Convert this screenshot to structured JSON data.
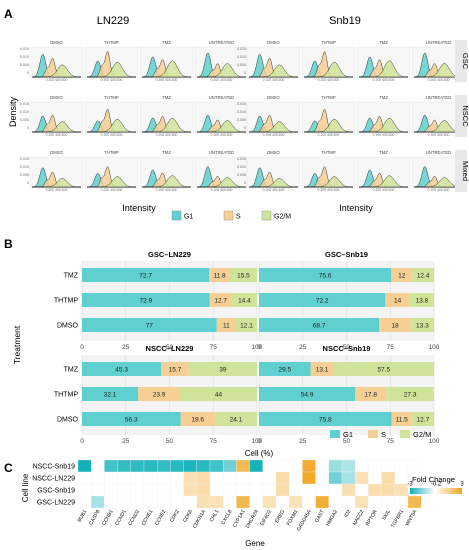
{
  "colors": {
    "g1": "#5fcfcf",
    "s": "#f6cf94",
    "g2m": "#cfe39a",
    "grid": "#e4e4e4",
    "hmHigh": "#f2a51e",
    "hmLow": "#11b1ba",
    "hmPaleHigh": "#fbe2b3",
    "hmPaleLow": "#bfeaec"
  },
  "panelA": {
    "letter": "A",
    "groups": [
      "LN229",
      "Snb19"
    ],
    "conditions": [
      "DMSO",
      "THTMP",
      "TMZ",
      "UNTREATED"
    ],
    "rows": [
      "GSC",
      "NSCC",
      "Mixed"
    ],
    "ylabel": "Density",
    "xlabel": "Intensity",
    "yticks_LN229": [
      "0.015",
      "0.010",
      "0.005",
      "0"
    ],
    "yticks_Snb19": [
      "0.015",
      "0.010",
      "0.005",
      "0"
    ],
    "legend": [
      "G1",
      "S",
      "G2/M"
    ]
  },
  "chart_data": [
    {
      "type": "bar",
      "title": "GSC–LN229",
      "stacked": true,
      "orientation": "horizontal",
      "categories": [
        "TMZ",
        "THTMP",
        "DMSO"
      ],
      "series": [
        {
          "name": "G1",
          "values": [
            72.7,
            72.9,
            77
          ]
        },
        {
          "name": "S",
          "values": [
            11.8,
            12.7,
            11
          ]
        },
        {
          "name": "G2/M",
          "values": [
            15.5,
            14.4,
            12.1
          ]
        }
      ],
      "xlim": [
        0,
        100
      ],
      "xticks": [
        0,
        25,
        50,
        75,
        100
      ],
      "xlabel": "Cell (%)",
      "ylabel": "Treatment"
    },
    {
      "type": "bar",
      "title": "GSC–Snb19",
      "stacked": true,
      "orientation": "horizontal",
      "categories": [
        "TMZ",
        "THTMP",
        "DMSO"
      ],
      "series": [
        {
          "name": "G1",
          "values": [
            75.6,
            72.2,
            68.7
          ]
        },
        {
          "name": "S",
          "values": [
            12,
            14,
            18
          ]
        },
        {
          "name": "G2/M",
          "values": [
            12.4,
            13.8,
            13.3
          ]
        }
      ],
      "xlim": [
        0,
        100
      ],
      "xticks": [
        0,
        25,
        50,
        75,
        100
      ],
      "xlabel": "Cell (%)"
    },
    {
      "type": "bar",
      "title": "NSCC–LN229",
      "stacked": true,
      "orientation": "horizontal",
      "categories": [
        "TMZ",
        "THTMP",
        "DMSO"
      ],
      "series": [
        {
          "name": "G1",
          "values": [
            45.3,
            32.1,
            56.3
          ]
        },
        {
          "name": "S",
          "values": [
            15.7,
            23.9,
            19.6
          ]
        },
        {
          "name": "G2/M",
          "values": [
            39,
            44,
            24.1
          ]
        }
      ],
      "xlim": [
        0,
        100
      ],
      "xticks": [
        0,
        25,
        50,
        75,
        100
      ],
      "xlabel": "Cell (%)"
    },
    {
      "type": "bar",
      "title": "NSCC–Snb19",
      "stacked": true,
      "orientation": "horizontal",
      "categories": [
        "TMZ",
        "THTMP",
        "DMSO"
      ],
      "series": [
        {
          "name": "G1",
          "values": [
            29.5,
            54.9,
            75.8
          ]
        },
        {
          "name": "S",
          "values": [
            13.1,
            17.8,
            11.5
          ]
        },
        {
          "name": "G2/M",
          "values": [
            57.5,
            27.3,
            12.7
          ]
        }
      ],
      "xlim": [
        0,
        100
      ],
      "xticks": [
        0,
        25,
        50,
        75,
        100
      ],
      "xlabel": "Cell (%)"
    },
    {
      "type": "heatmap",
      "rows": [
        "NSCC-Snb19",
        "NSCC-LN229",
        "GSC-Snb19",
        "GSC-LN229"
      ],
      "columns": [
        "BUB1",
        "CASP8",
        "CCNB1",
        "CCND1",
        "CCND2",
        "CCNE1",
        "CCNE2",
        "CDK2",
        "CDK6",
        "CDKN1A",
        "CHL1",
        "CXCL8",
        "CYP1A1",
        "DHCR24",
        "EIF4G2",
        "EREG",
        "FOXM1",
        "GADD45A",
        "GAST",
        "HMGA2",
        "ID2",
        "NACC2",
        "RPTOR",
        "SKIL",
        "TGFBR1",
        "WNT5A"
      ],
      "values": [
        [
          -3.0,
          0,
          -2.2,
          -2.4,
          -2.5,
          -2.6,
          -2.4,
          -2.6,
          -2.8,
          -2.6,
          -2.2,
          -1.4,
          2.0,
          -2.9,
          0,
          0,
          0,
          2.7,
          0,
          -0.7,
          -0.4,
          0,
          0,
          0,
          0,
          0
        ],
        [
          0,
          0,
          0,
          0,
          0,
          0,
          0,
          0,
          0.4,
          0.5,
          0,
          0,
          0,
          0,
          0,
          0.5,
          0,
          2.8,
          0,
          -1.4,
          -0.5,
          0.3,
          0,
          0.6,
          0,
          0
        ],
        [
          0,
          0,
          0,
          0,
          0,
          0,
          0,
          0,
          0.4,
          0.5,
          0,
          0,
          0,
          0,
          0,
          0.5,
          0,
          0,
          0,
          0,
          0.4,
          0,
          0.4,
          0.5,
          0.3,
          0
        ],
        [
          0,
          -0.5,
          0,
          0,
          0,
          0,
          0,
          0,
          0,
          0.4,
          0.3,
          0,
          2.2,
          0,
          0.3,
          0,
          0.3,
          0,
          2.6,
          0,
          0,
          0.3,
          0,
          0,
          0,
          2.1
        ]
      ],
      "xlabel": "Gene",
      "ylabel": "Cell line",
      "legend_title": "Fold Change",
      "legend_ticks": [
        "-3",
        "-0.2",
        "3"
      ]
    }
  ],
  "panelB": {
    "letter": "B",
    "legend": [
      "G1",
      "S",
      "G2/M"
    ]
  },
  "panelC": {
    "letter": "C"
  }
}
